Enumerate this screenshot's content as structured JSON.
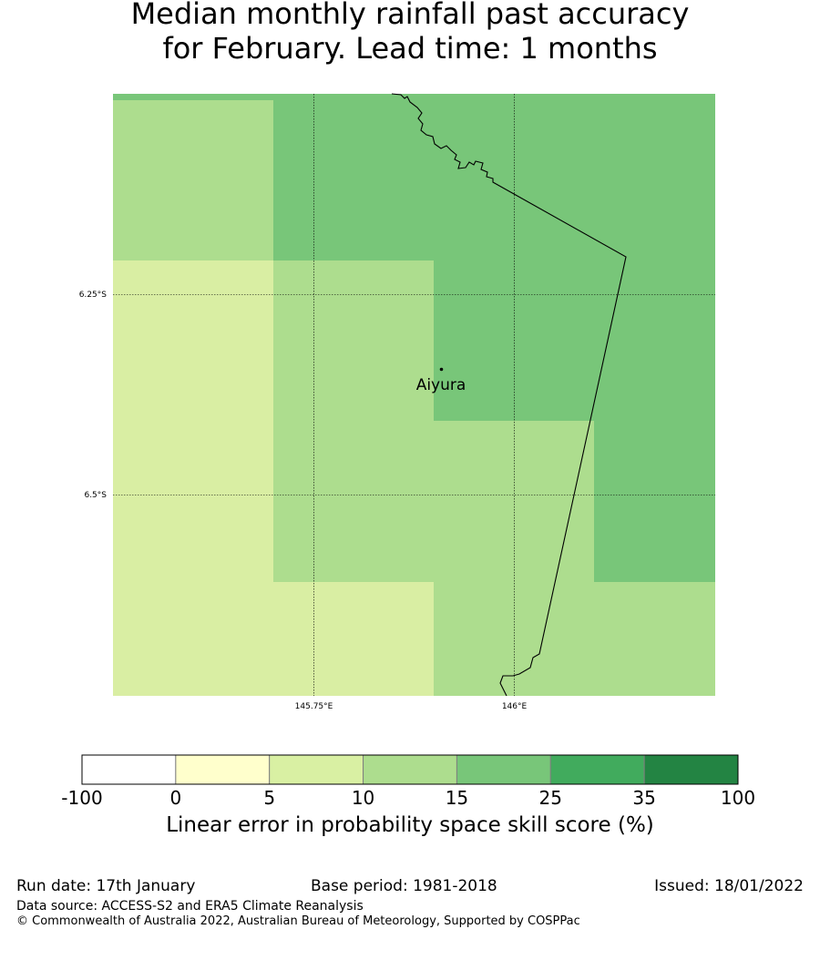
{
  "title": {
    "line1": "Median monthly rainfall past accuracy",
    "line2": "for February. Lead time: 1 months"
  },
  "map": {
    "lat_labels": [
      "6.25°S",
      "6.5°S"
    ],
    "lon_labels": [
      "145.75°E",
      "146°E"
    ],
    "place": {
      "name": "Aiyura"
    },
    "colors": {
      "c5_10": "#d9eea3",
      "c10_15": "#addd8e",
      "c15_25": "#78c679",
      "coast": "#000000"
    }
  },
  "colorbar": {
    "label": "Linear error in probability space skill score (%)",
    "ticks": [
      "-100",
      "0",
      "5",
      "10",
      "15",
      "25",
      "35",
      "100"
    ],
    "colors": [
      "#ffffff",
      "#ffffcc",
      "#d9f0a3",
      "#addd8e",
      "#78c679",
      "#41ab5d",
      "#238443"
    ]
  },
  "footer": {
    "run_date": "Run date: 17th January",
    "base_period": "Base period: 1981-2018",
    "issued": "Issued: 18/01/2022",
    "data_source": "Data source: ACCESS-S2 and ERA5 Climate Reanalysis",
    "copyright": "© Commonwealth of Australia 2022, Australian Bureau of Meteorology, Supported by COSPPac"
  }
}
